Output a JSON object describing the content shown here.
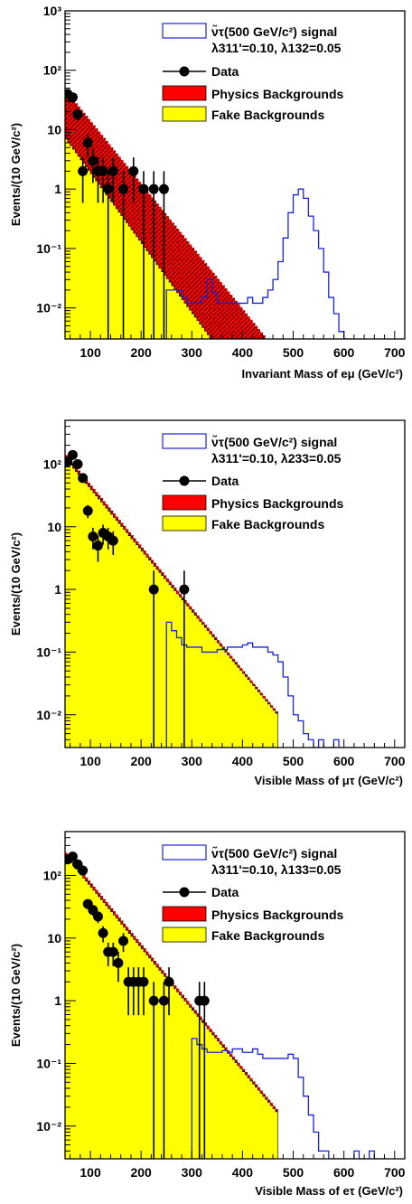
{
  "figure": "Three stacked log-scale histograms of di-lepton mass with signal, backgrounds and data",
  "colors": {
    "signal": "#1a23d6",
    "physics_bkg": "#ff0000",
    "fake_bkg": "#ffff00",
    "data": "#000000"
  },
  "chart_data": [
    {
      "type": "bar",
      "id": "emu",
      "title": "",
      "xlabel": "Invariant Mass of eμ (GeV/c²)",
      "ylabel": "Events/(10 GeV/c²)",
      "log_y": true,
      "xlim": [
        50,
        720
      ],
      "ylim": [
        0.003,
        1000
      ],
      "x_ticks": [
        100,
        200,
        300,
        400,
        500,
        600,
        700
      ],
      "x_tick_labels": [
        "100",
        "200",
        "300",
        "400",
        "500",
        "600",
        "700"
      ],
      "y_ticks": [
        0.01,
        0.1,
        1,
        10,
        100,
        1000
      ],
      "y_tick_labels": [
        "10⁻²",
        "10⁻¹",
        "1",
        "10",
        "10²",
        "10³"
      ],
      "legend": {
        "position": "top-right",
        "signal_line1": "ν̃τ(500 GeV/c²) signal",
        "signal_line2": "λ311'=0.10, λ132=0.05",
        "data": "Data",
        "physics": "Physics Backgrounds",
        "fake": "Fake Backgrounds"
      },
      "physics_bkg": {
        "start": 50,
        "width": 5,
        "y0": 45,
        "slope": 0.0243,
        "end": 470
      },
      "fake_bkg": {
        "start": 50,
        "width": 5,
        "y0": 7,
        "slope": 0.0271,
        "end": 370
      },
      "signal": {
        "x": [
          255,
          265,
          275,
          285,
          295,
          305,
          315,
          325,
          335,
          345,
          355,
          365,
          375,
          385,
          395,
          405,
          415,
          425,
          435,
          445,
          455,
          465,
          475,
          485,
          495,
          505,
          515,
          525,
          535,
          545,
          555,
          565,
          575,
          585,
          595,
          605
        ],
        "y": [
          0.02,
          0.02,
          0.02,
          0.015,
          0.012,
          0.012,
          0.012,
          0.015,
          0.03,
          0.018,
          0.012,
          0.012,
          0.012,
          0.012,
          0.012,
          0.012,
          0.015,
          0.012,
          0.012,
          0.015,
          0.02,
          0.03,
          0.06,
          0.15,
          0.4,
          0.8,
          1.0,
          0.7,
          0.35,
          0.2,
          0.1,
          0.04,
          0.015,
          0.008,
          0.004,
          0.003
        ]
      },
      "data": {
        "x": [
          55,
          65,
          75,
          85,
          95,
          105,
          115,
          125,
          135,
          145,
          165,
          185,
          205,
          225,
          245
        ],
        "y": [
          40,
          35,
          18,
          2,
          6,
          3,
          2,
          2,
          1,
          2,
          1,
          2,
          1,
          1,
          1
        ]
      }
    },
    {
      "type": "bar",
      "id": "mutau",
      "title": "",
      "xlabel": "Visible Mass of μτ (GeV/c²)",
      "ylabel": "Events/(10 GeV/c²)",
      "log_y": true,
      "xlim": [
        50,
        720
      ],
      "ylim": [
        0.003,
        500
      ],
      "x_ticks": [
        100,
        200,
        300,
        400,
        500,
        600,
        700
      ],
      "x_tick_labels": [
        "100",
        "200",
        "300",
        "400",
        "500",
        "600",
        "700"
      ],
      "y_ticks": [
        0.01,
        0.1,
        1,
        10,
        100
      ],
      "y_tick_labels": [
        "10⁻²",
        "10⁻¹",
        "1",
        "10",
        "10²"
      ],
      "legend": {
        "position": "top-right",
        "signal_line1": "ν̃τ(500 GeV/c²) signal",
        "signal_line2": "λ311'=0.10, λ233=0.05",
        "data": "Data",
        "physics": "Physics Backgrounds",
        "fake": "Fake Backgrounds"
      },
      "physics_bkg": {
        "start": 50,
        "width": 5,
        "y0": 140,
        "slope": 0.0227,
        "end": 470
      },
      "fake_bkg": {
        "start": 50,
        "width": 5,
        "y0": 120,
        "slope": 0.0225,
        "end": 470
      },
      "signal": {
        "x": [
          255,
          265,
          275,
          285,
          295,
          305,
          315,
          325,
          335,
          345,
          355,
          365,
          375,
          385,
          395,
          405,
          415,
          425,
          435,
          445,
          455,
          465,
          475,
          485,
          495,
          505,
          515,
          525,
          535,
          545,
          555,
          565,
          575,
          585,
          595,
          605,
          615,
          625
        ],
        "y": [
          0.3,
          0.22,
          0.17,
          0.13,
          0.12,
          0.12,
          0.12,
          0.1,
          0.1,
          0.1,
          0.11,
          0.11,
          0.12,
          0.12,
          0.12,
          0.13,
          0.14,
          0.12,
          0.12,
          0.12,
          0.1,
          0.09,
          0.07,
          0.04,
          0.02,
          0.01,
          0.008,
          0.005,
          0.004,
          0.003,
          0.004,
          0.003,
          0.003,
          0.004,
          0.003,
          0.003,
          0.003,
          0.003
        ]
      },
      "data": {
        "x": [
          55,
          65,
          75,
          85,
          95,
          105,
          115,
          125,
          135,
          145,
          225,
          285
        ],
        "y": [
          110,
          140,
          100,
          60,
          18,
          7,
          5,
          8,
          7,
          6,
          1,
          1
        ]
      }
    },
    {
      "type": "bar",
      "id": "etau",
      "title": "",
      "xlabel": "Visible Mass of eτ (GeV/c²)",
      "ylabel": "Events/(10 GeV/c²)",
      "log_y": true,
      "xlim": [
        50,
        720
      ],
      "ylim": [
        0.003,
        500
      ],
      "x_ticks": [
        100,
        200,
        300,
        400,
        500,
        600,
        700
      ],
      "x_tick_labels": [
        "100",
        "200",
        "300",
        "400",
        "500",
        "600",
        "700"
      ],
      "y_ticks": [
        0.01,
        0.1,
        1,
        10,
        100
      ],
      "y_tick_labels": [
        "10⁻²",
        "10⁻¹",
        "1",
        "10",
        "10²"
      ],
      "legend": {
        "position": "top-right",
        "signal_line1": "ν̃τ(500 GeV/c²) signal",
        "signal_line2": "λ311'=0.10, λ133=0.05",
        "data": "Data",
        "physics": "Physics Backgrounds",
        "fake": "Fake Backgrounds"
      },
      "physics_bkg": {
        "start": 50,
        "width": 5,
        "y0": 230,
        "slope": 0.0227,
        "end": 470
      },
      "fake_bkg": {
        "start": 50,
        "width": 5,
        "y0": 200,
        "slope": 0.0226,
        "end": 470
      },
      "signal": {
        "x": [
          305,
          315,
          325,
          335,
          345,
          355,
          365,
          375,
          385,
          395,
          405,
          415,
          425,
          435,
          445,
          455,
          465,
          475,
          485,
          495,
          505,
          515,
          525,
          535,
          545,
          555,
          565,
          575,
          585,
          595,
          605,
          615,
          625,
          635,
          645,
          655,
          665,
          675
        ],
        "y": [
          0.25,
          0.2,
          0.17,
          0.15,
          0.15,
          0.15,
          0.16,
          0.15,
          0.17,
          0.17,
          0.15,
          0.15,
          0.17,
          0.14,
          0.12,
          0.12,
          0.12,
          0.12,
          0.12,
          0.14,
          0.12,
          0.06,
          0.03,
          0.015,
          0.008,
          0.004,
          0.004,
          0.003,
          0.003,
          0.003,
          0.003,
          0.003,
          0.004,
          0.003,
          0.003,
          0.004,
          0.003,
          0.003
        ]
      },
      "data": {
        "x": [
          55,
          65,
          75,
          85,
          95,
          105,
          115,
          125,
          135,
          145,
          155,
          165,
          175,
          185,
          195,
          205,
          225,
          245,
          255,
          315,
          325
        ],
        "y": [
          180,
          200,
          150,
          120,
          35,
          28,
          22,
          12,
          6,
          6,
          4,
          9,
          2,
          2,
          2,
          2,
          1,
          1,
          2,
          1,
          1
        ]
      }
    }
  ]
}
